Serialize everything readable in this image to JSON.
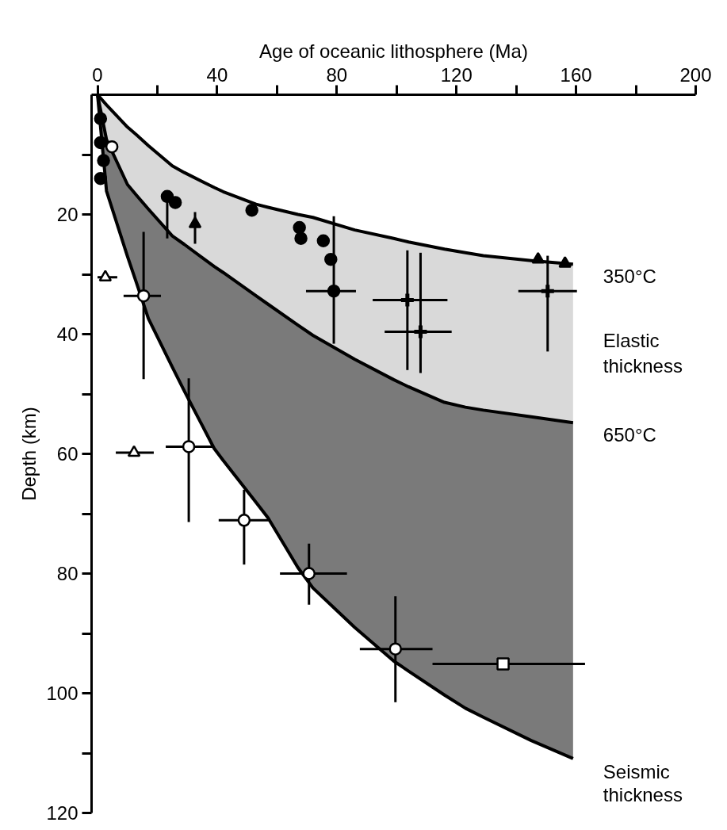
{
  "chart_data": {
    "type": "scatter",
    "xlabel": "Age of oceanic lithosphere (Ma)",
    "ylabel": "Depth (km)",
    "xlim": [
      -2,
      200
    ],
    "ylim": [
      120,
      0
    ],
    "xticks": [
      0,
      {
        "value": 20,
        "label": null
      },
      40,
      {
        "value": 60,
        "label": null
      },
      80,
      {
        "value": 100,
        "label": null
      },
      120,
      {
        "value": 140,
        "label": null
      },
      160,
      {
        "value": 180,
        "label": null
      },
      200
    ],
    "yticks": [
      {
        "value": 10,
        "label": null
      },
      20,
      {
        "value": 30,
        "label": null
      },
      40,
      {
        "value": 50,
        "label": null
      },
      60,
      {
        "value": 70,
        "label": null
      },
      80,
      {
        "value": 90,
        "label": null
      },
      100,
      {
        "value": 110,
        "label": null
      },
      120
    ],
    "grid": false,
    "stacked": true,
    "series": [
      {
        "type": "area",
        "color": "#ffffff",
        "x": [
          0,
          3,
          10,
          13,
          17,
          25,
          29,
          39,
          42,
          53,
          57,
          67,
          72,
          86,
          99,
          104,
          116,
          123,
          129,
          145,
          159
        ],
        "values": [
          0,
          1.7,
          5.4,
          6.7,
          8.5,
          11.9,
          13,
          15.5,
          16.2,
          18.3,
          18.8,
          20,
          20.5,
          22.6,
          24,
          24.6,
          25.8,
          26.4,
          26.9,
          27.7,
          28.3
        ]
      },
      {
        "type": "area",
        "name": "Elastic thickness",
        "color": "#d9d9d9",
        "x": [
          0,
          3,
          10,
          13,
          17,
          25,
          29,
          39,
          42,
          53,
          57,
          67,
          72,
          86,
          99,
          104,
          116,
          123,
          129,
          145,
          159
        ],
        "values": [
          0,
          5.8,
          9.6,
          10.1,
          10.6,
          11.7,
          12,
          13.2,
          13.5,
          15.3,
          16.2,
          18.5,
          19.7,
          21.6,
          23.6,
          24.2,
          25.6,
          25.8,
          25.8,
          26.1,
          26.5
        ]
      },
      {
        "type": "area",
        "color": "#7a7a7a",
        "x": [
          0,
          3,
          10,
          13,
          17,
          25,
          29,
          39,
          42,
          53,
          57,
          67,
          72,
          86,
          99,
          104,
          116,
          123,
          129,
          145,
          159
        ],
        "values": [
          0,
          8.6,
          12,
          14.6,
          18.3,
          21.9,
          24.5,
          30.4,
          31.4,
          34.5,
          35.7,
          40.5,
          42.2,
          44.8,
          47,
          47.5,
          48.9,
          50.3,
          51.3,
          54.1,
          56.1
        ]
      },
      {
        "marker": "circle",
        "color": "#000000",
        "x": [
          1,
          1,
          2,
          1,
          23.3,
          26,
          51.6,
          67.5,
          68,
          75.5,
          78,
          79
        ],
        "values": [
          4,
          8,
          11,
          14,
          17,
          18,
          19.3,
          22.2,
          24,
          24.4,
          27.5,
          32.8
        ],
        "errors": [
          null,
          null,
          null,
          null,
          [
            17,
            24
          ],
          null,
          null,
          null,
          null,
          null,
          null,
          [
            20.3,
            41.6
          ]
        ],
        "xerrors": [
          null,
          null,
          null,
          null,
          null,
          null,
          null,
          null,
          null,
          null,
          null,
          [
            69.7,
            86.4
          ]
        ]
      },
      {
        "marker": "triangle",
        "color": "#000000",
        "x": [
          32.6,
          147.3,
          156.3
        ],
        "values": [
          21.6,
          27.5,
          28.2
        ],
        "errors": [
          [
            19.6,
            24.9
          ],
          null,
          null
        ]
      },
      {
        "marker": "cross",
        "color": "#000000",
        "x": [
          103.6,
          108,
          150.5
        ],
        "values": [
          34.3,
          39.6,
          32.8
        ],
        "errors": [
          [
            26,
            46
          ],
          [
            26.4,
            46.5
          ],
          [
            26.9,
            42.9
          ]
        ],
        "xerrors": [
          [
            92,
            117
          ],
          [
            96,
            118.4
          ],
          [
            140.7,
            160.3
          ]
        ]
      },
      {
        "marker": "circle",
        "color": "#ffffff",
        "x": [
          4.8,
          15.4,
          30.5,
          49,
          70.7,
          99.6
        ],
        "values": [
          8.7,
          33.6,
          58.8,
          71.1,
          80,
          92.6
        ],
        "errors": [
          null,
          [
            22.9,
            47.5
          ],
          [
            47.4,
            71.4
          ],
          [
            66,
            78.5
          ],
          [
            75,
            85.2
          ],
          [
            83.8,
            101.5
          ]
        ],
        "xerrors": [
          null,
          [
            8.7,
            21.2
          ],
          [
            22.8,
            38.7
          ],
          [
            40.5,
            57.2
          ],
          [
            61,
            83.4
          ],
          [
            87.7,
            112
          ]
        ]
      },
      {
        "marker": "triangle",
        "color": "#ffffff",
        "x": [
          2.6,
          12.2
        ],
        "values": [
          30.5,
          59.8
        ],
        "xerrors": [
          [
            0,
            6.6
          ],
          [
            6.1,
            18.8
          ]
        ]
      },
      {
        "marker": "square",
        "color": "#ffffff",
        "x": [
          135.6
        ],
        "values": [
          95.1
        ],
        "xerrors": [
          [
            112,
            163
          ]
        ]
      }
    ],
    "annotations": [
      "350°C",
      "650°C",
      "Seismic thickness"
    ]
  }
}
